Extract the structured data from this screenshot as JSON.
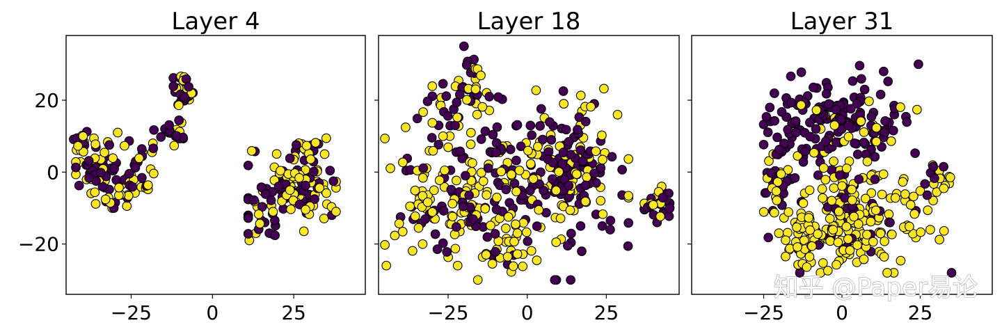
{
  "colors": {
    "purple": "#440154",
    "yellow": "#fde725",
    "edge": "#000000"
  },
  "watermark": "知乎 @Paper易论",
  "chart_data": [
    {
      "type": "scatter",
      "title": "Layer 4",
      "xlim": [
        -45,
        47
      ],
      "ylim": [
        -34,
        38
      ],
      "xticks": [
        -25,
        0,
        25
      ],
      "xtick_labels": [
        "−25",
        "0",
        "25"
      ],
      "yticks": [
        -20,
        0,
        20
      ],
      "ytick_labels": [
        "−20",
        "0",
        "20"
      ],
      "show_yticklabels": true,
      "grid": false,
      "clusters": [
        {
          "cx": -32,
          "cy": -1,
          "sx": 6,
          "sy": 5,
          "n": 90,
          "pf": 0.5,
          "lo": [
            -42,
            -10
          ],
          "hi": [
            -19,
            11
          ]
        },
        {
          "cx": -41,
          "cy": 8,
          "sx": 1.5,
          "sy": 2.5,
          "n": 12,
          "pf": 0.4,
          "lo": [
            -43,
            2
          ],
          "hi": [
            -38,
            13
          ]
        },
        {
          "cx": -13,
          "cy": 11,
          "sx": 2.5,
          "sy": 2.5,
          "n": 18,
          "pf": 0.55,
          "lo": [
            -18,
            6
          ],
          "hi": [
            -9,
            16
          ]
        },
        {
          "cx": -9,
          "cy": 22,
          "sx": 1.6,
          "sy": 3,
          "n": 25,
          "pf": 0.45,
          "lo": [
            -12,
            15
          ],
          "hi": [
            -6,
            28
          ]
        },
        {
          "cx": -20,
          "cy": 2,
          "sx": 3,
          "sy": 3,
          "n": 12,
          "pf": 0.6,
          "lo": [
            -24,
            -4
          ],
          "hi": [
            -15,
            8
          ]
        },
        {
          "cx": 25,
          "cy": -5,
          "sx": 7,
          "sy": 5,
          "n": 110,
          "pf": 0.5,
          "lo": [
            11,
            -19
          ],
          "hi": [
            38,
            11
          ]
        },
        {
          "cx": 30,
          "cy": 6,
          "sx": 3,
          "sy": 2,
          "n": 15,
          "pf": 0.3,
          "lo": [
            25,
            2
          ],
          "hi": [
            35,
            10
          ]
        },
        {
          "cx": 15,
          "cy": -15,
          "sx": 3,
          "sy": 2,
          "n": 15,
          "pf": 0.6,
          "lo": [
            11,
            -19
          ],
          "hi": [
            20,
            -11
          ]
        }
      ]
    },
    {
      "type": "scatter",
      "title": "Layer 18",
      "xlim": [
        -47,
        48
      ],
      "ylim": [
        -34,
        38
      ],
      "xticks": [
        -25,
        0,
        25
      ],
      "xtick_labels": [
        "−25",
        "0",
        "25"
      ],
      "yticks": [
        -20,
        0,
        20
      ],
      "ytick_labels": [
        "",
        "",
        ""
      ],
      "show_yticklabels": false,
      "grid": false,
      "clusters": [
        {
          "cx": -5,
          "cy": -2,
          "sx": 17,
          "sy": 11,
          "n": 230,
          "pf": 0.5,
          "lo": [
            -45,
            -30
          ],
          "hi": [
            32,
            27
          ]
        },
        {
          "cx": 15,
          "cy": 3,
          "sx": 7,
          "sy": 7,
          "n": 90,
          "pf": 0.8,
          "lo": [
            -2,
            -15
          ],
          "hi": [
            30,
            19
          ]
        },
        {
          "cx": -28,
          "cy": -8,
          "sx": 8,
          "sy": 9,
          "n": 70,
          "pf": 0.15,
          "lo": [
            -45,
            -26
          ],
          "hi": [
            -10,
            10
          ]
        },
        {
          "cx": -5,
          "cy": -22,
          "sx": 5,
          "sy": 4,
          "n": 30,
          "pf": 0.35,
          "lo": [
            -13,
            -30
          ],
          "hi": [
            3,
            -13
          ]
        },
        {
          "cx": -17,
          "cy": 30,
          "sx": 1.5,
          "sy": 2.5,
          "n": 12,
          "pf": 0.6,
          "lo": [
            -20,
            24
          ],
          "hi": [
            -13,
            35
          ]
        },
        {
          "cx": -22,
          "cy": 20,
          "sx": 5,
          "sy": 4,
          "n": 35,
          "pf": 0.55,
          "lo": [
            -30,
            13
          ],
          "hi": [
            -12,
            27
          ]
        },
        {
          "cx": 41,
          "cy": -9,
          "sx": 2,
          "sy": 2.2,
          "n": 32,
          "pf": 0.75,
          "lo": [
            37,
            -14
          ],
          "hi": [
            45,
            -4
          ]
        }
      ]
    },
    {
      "type": "scatter",
      "title": "Layer 31",
      "xlim": [
        -48,
        48
      ],
      "ylim": [
        -34,
        38
      ],
      "xticks": [
        -25,
        0,
        25
      ],
      "xtick_labels": [
        "−25",
        "0",
        "25"
      ],
      "yticks": [
        -20,
        0,
        20
      ],
      "ytick_labels": [
        "",
        "",
        ""
      ],
      "show_yticklabels": false,
      "grid": false,
      "clusters": [
        {
          "cx": -2,
          "cy": 14,
          "sx": 11,
          "sy": 7,
          "n": 190,
          "pf": 0.85,
          "lo": [
            -25,
            -2
          ],
          "hi": [
            30,
            30
          ]
        },
        {
          "cx": 4,
          "cy": -13,
          "sx": 11,
          "sy": 7,
          "n": 210,
          "pf": 0.18,
          "lo": [
            -25,
            -28
          ],
          "hi": [
            35,
            3
          ]
        },
        {
          "cx": -20,
          "cy": -4,
          "sx": 3,
          "sy": 4,
          "n": 30,
          "pf": 0.35,
          "lo": [
            -25,
            -12
          ],
          "hi": [
            -14,
            5
          ]
        },
        {
          "cx": 30,
          "cy": -3,
          "sx": 3,
          "sy": 3,
          "n": 20,
          "pf": 0.35,
          "lo": [
            25,
            -10
          ],
          "hi": [
            35,
            2
          ]
        },
        {
          "cx": -12,
          "cy": -21,
          "sx": 4,
          "sy": 3.5,
          "n": 35,
          "pf": 0.0,
          "lo": [
            -18,
            -28
          ],
          "hi": [
            -4,
            -14
          ]
        }
      ]
    }
  ]
}
